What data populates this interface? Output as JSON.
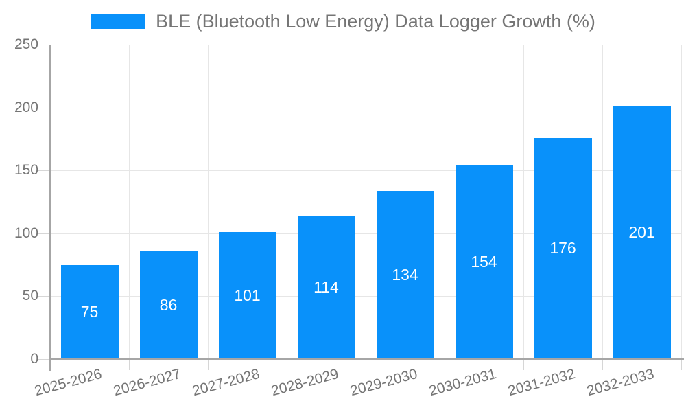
{
  "chart_data": {
    "type": "bar",
    "title": "BLE (Bluetooth Low Energy) Data Logger Growth (%)",
    "categories": [
      "2025-2026",
      "2026-2027",
      "2027-2028",
      "2028-2029",
      "2029-2030",
      "2030-2031",
      "2031-2032",
      "2032-2033"
    ],
    "values": [
      75,
      86,
      101,
      114,
      134,
      154,
      176,
      201
    ],
    "xlabel": "",
    "ylabel": "",
    "ylim": [
      0,
      250
    ],
    "yticks": [
      0,
      50,
      100,
      150,
      200,
      250
    ],
    "legend_position": "top",
    "grid": true,
    "value_label_position": "inside-center",
    "colors": {
      "bar": "#0991fa",
      "value_label": "#ffffff",
      "axis_label": "#757575",
      "gridline": "#e6e6e6",
      "axis_line": "#a6a6a6",
      "tick": "#d6d6d6"
    }
  }
}
